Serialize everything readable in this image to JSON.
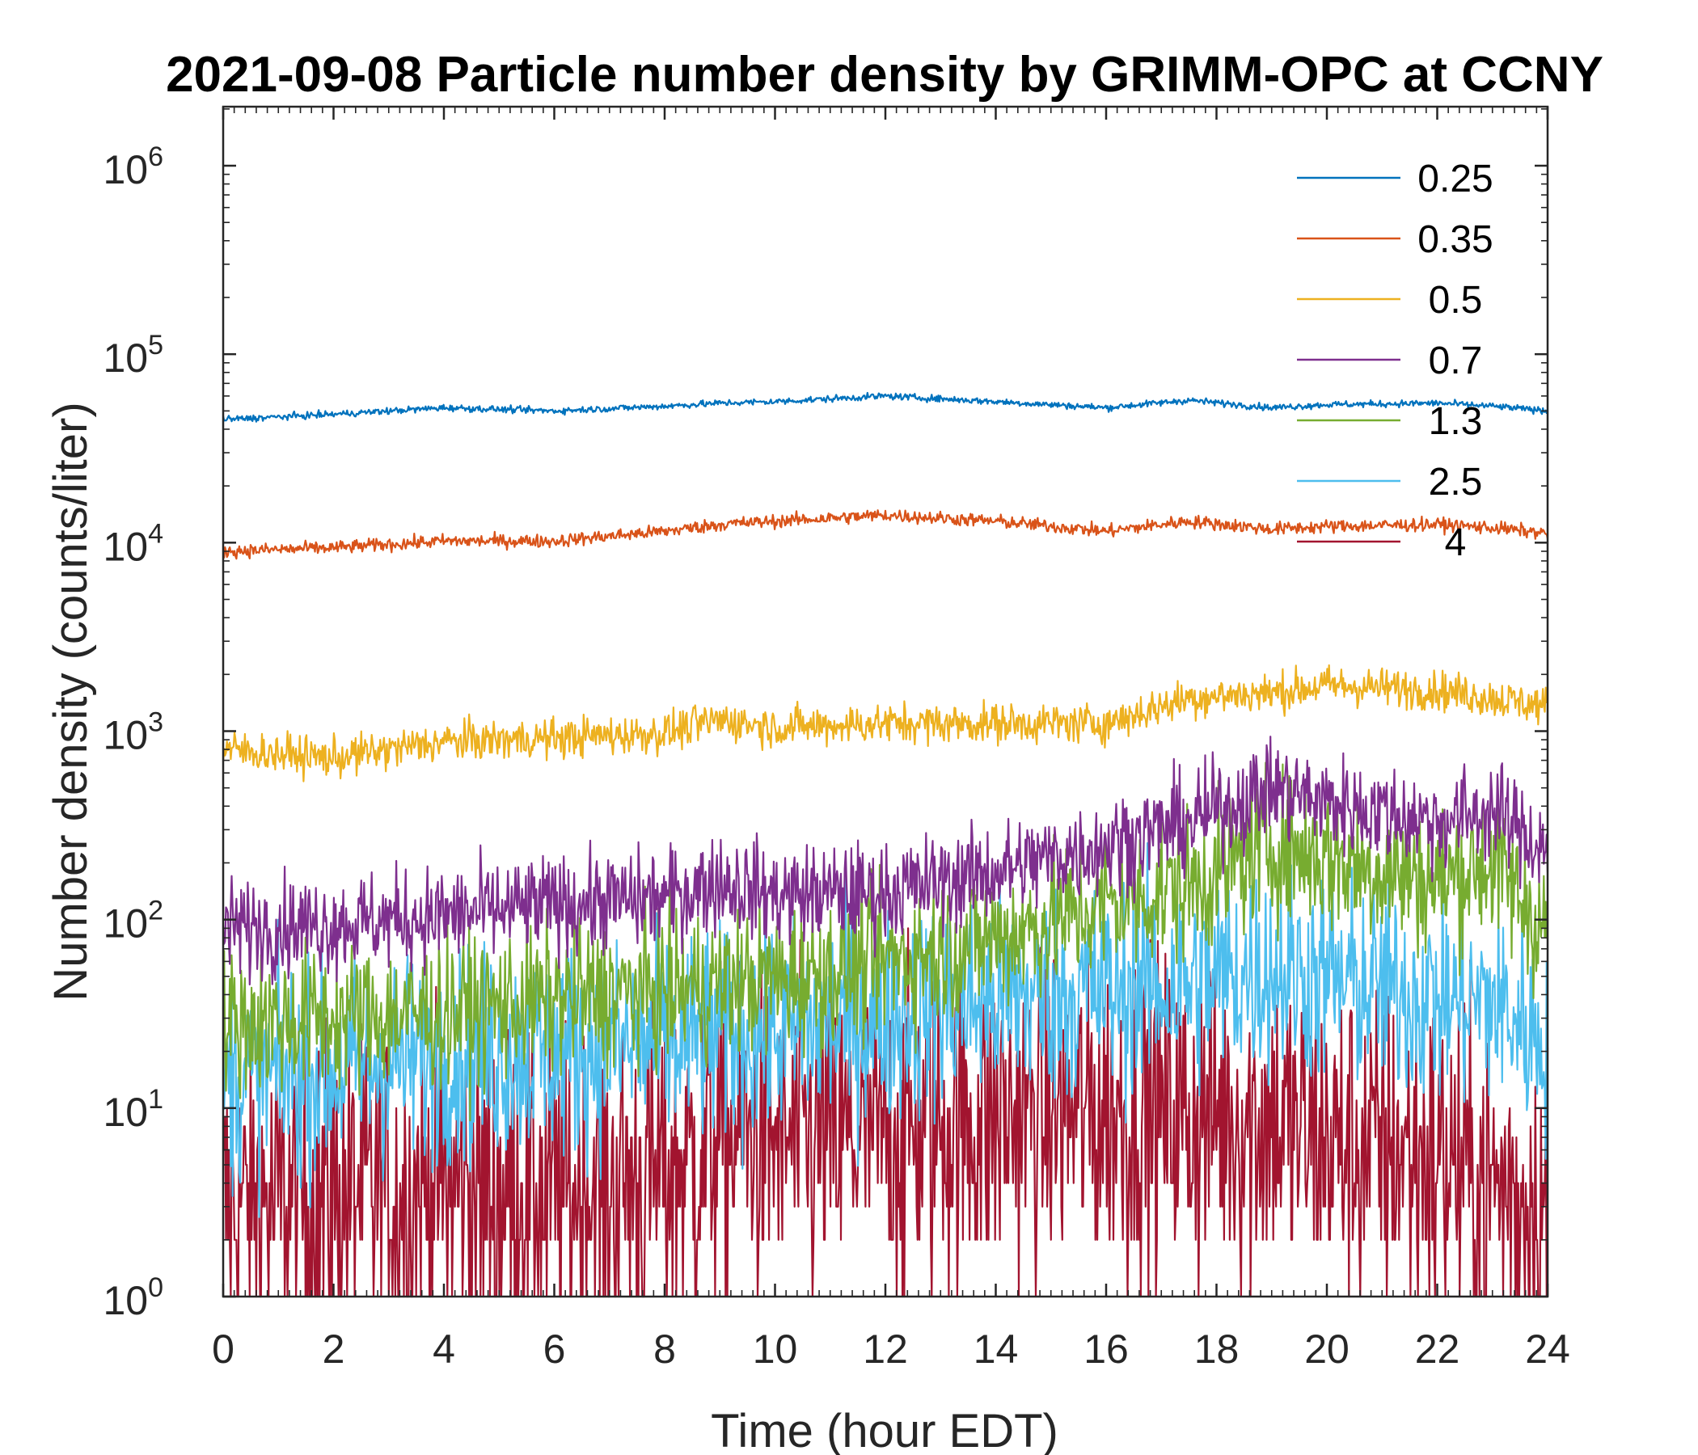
{
  "chart_data": {
    "type": "line",
    "title": "2021-09-08 Particle number density by GRIMM-OPC at CCNY",
    "xlabel": "Time (hour EDT)",
    "ylabel": "Number density (counts/liter)",
    "xlim": [
      0,
      24
    ],
    "ylim": [
      1,
      2000000
    ],
    "yscale": "log",
    "xticks": [
      "0",
      "2",
      "4",
      "6",
      "8",
      "10",
      "12",
      "14",
      "16",
      "18",
      "20",
      "22",
      "24"
    ],
    "yticks": [
      {
        "base": "10",
        "exp": "0",
        "value": 1
      },
      {
        "base": "10",
        "exp": "1",
        "value": 10
      },
      {
        "base": "10",
        "exp": "2",
        "value": 100
      },
      {
        "base": "10",
        "exp": "3",
        "value": 1000
      },
      {
        "base": "10",
        "exp": "4",
        "value": 10000
      },
      {
        "base": "10",
        "exp": "5",
        "value": 100000
      },
      {
        "base": "10",
        "exp": "6",
        "value": 1000000
      }
    ],
    "legend_position": "top-right",
    "grid": false,
    "x": [
      0,
      2,
      4,
      6,
      8,
      9,
      10,
      12,
      14,
      16,
      17.5,
      19,
      20,
      22,
      23,
      24
    ],
    "series": [
      {
        "name": "0.25",
        "color": "#0072BD",
        "noise": 0.02,
        "values": [
          45000,
          48000,
          52000,
          50000,
          53000,
          55000,
          56000,
          60000,
          56000,
          52000,
          57000,
          52000,
          54000,
          55000,
          53000,
          50000
        ]
      },
      {
        "name": "0.35",
        "color": "#D95319",
        "noise": 0.04,
        "values": [
          9000,
          9400,
          10200,
          10200,
          11500,
          12500,
          13000,
          14000,
          13000,
          11500,
          13000,
          11800,
          12200,
          12500,
          12000,
          11200
        ]
      },
      {
        "name": "0.5",
        "color": "#EDB120",
        "noise": 0.12,
        "values": [
          800,
          720,
          880,
          920,
          980,
          1150,
          1050,
          1100,
          1100,
          1100,
          1500,
          1600,
          1750,
          1650,
          1500,
          1350
        ]
      },
      {
        "name": "0.7",
        "color": "#7E2F8E",
        "noise": 0.3,
        "values": [
          90,
          95,
          105,
          120,
          130,
          160,
          135,
          140,
          180,
          250,
          330,
          500,
          420,
          330,
          380,
          230
        ]
      },
      {
        "name": "1.3",
        "color": "#77AC30",
        "noise": 0.45,
        "values": [
          28,
          30,
          32,
          38,
          42,
          45,
          48,
          60,
          80,
          120,
          150,
          250,
          210,
          160,
          200,
          85
        ]
      },
      {
        "name": "2.5",
        "color": "#4DBEEE",
        "noise": 0.65,
        "values": [
          14,
          16,
          19,
          20,
          22,
          24,
          25,
          30,
          38,
          42,
          45,
          55,
          48,
          38,
          36,
          22
        ]
      },
      {
        "name": "4",
        "color": "#A2142F",
        "noise": 1.0,
        "values": [
          3,
          3.5,
          3.8,
          3.5,
          4.5,
          7,
          6.5,
          7,
          9,
          9.5,
          9,
          8.5,
          6.5,
          5.5,
          4,
          3
        ]
      }
    ]
  }
}
